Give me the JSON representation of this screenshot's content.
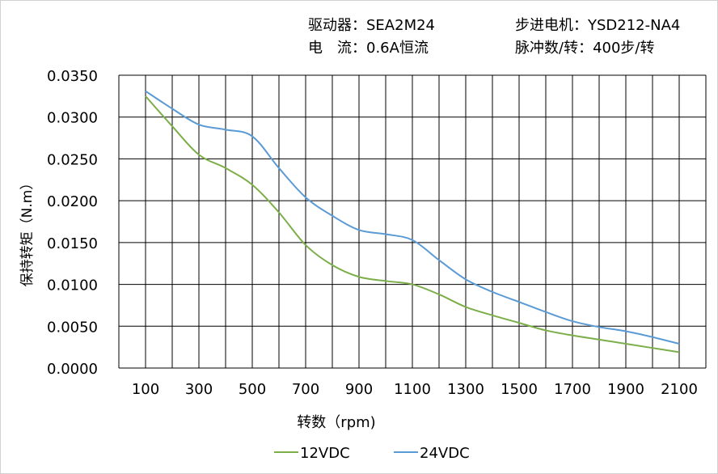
{
  "header": {
    "driver": "驱动器：SEA2M24",
    "current": "电　流：0.6A恒流",
    "motor": "步进电机：YSD212-NA4",
    "pulses": "脉冲数/转：400步/转"
  },
  "chart_data": {
    "type": "line",
    "title": "",
    "xlabel": "转数（rpm)",
    "ylabel": "保持转矩（N.m）",
    "xlim": [
      0,
      2200
    ],
    "ylim": [
      0,
      0.035
    ],
    "grid": true,
    "legend_position": "bottom",
    "x_ticks": [
      "100",
      "300",
      "500",
      "700",
      "900",
      "1100",
      "1300",
      "1500",
      "1700",
      "1900",
      "2100"
    ],
    "y_ticks": [
      "0.0000",
      "0.0050",
      "0.0100",
      "0.0150",
      "0.0200",
      "0.0250",
      "0.0300",
      "0.0350"
    ],
    "x": [
      100,
      200,
      300,
      400,
      500,
      600,
      700,
      800,
      900,
      1000,
      1100,
      1200,
      1300,
      1400,
      1500,
      1600,
      1700,
      1800,
      1900,
      2000,
      2100
    ],
    "series": [
      {
        "name": "12VDC",
        "color": "#7cae4a",
        "values": [
          0.0325,
          0.0289,
          0.0255,
          0.0239,
          0.0219,
          0.0186,
          0.0147,
          0.0123,
          0.0109,
          0.0104,
          0.01,
          0.0088,
          0.0073,
          0.0063,
          0.0054,
          0.0045,
          0.0039,
          0.0034,
          0.0029,
          0.0024,
          0.0019
        ]
      },
      {
        "name": "24VDC",
        "color": "#5b9bd5",
        "values": [
          0.0331,
          0.031,
          0.0291,
          0.0285,
          0.0277,
          0.0239,
          0.0204,
          0.0182,
          0.0165,
          0.016,
          0.0153,
          0.0129,
          0.0106,
          0.0091,
          0.0079,
          0.0067,
          0.0056,
          0.0049,
          0.0044,
          0.0037,
          0.0029
        ]
      }
    ]
  }
}
